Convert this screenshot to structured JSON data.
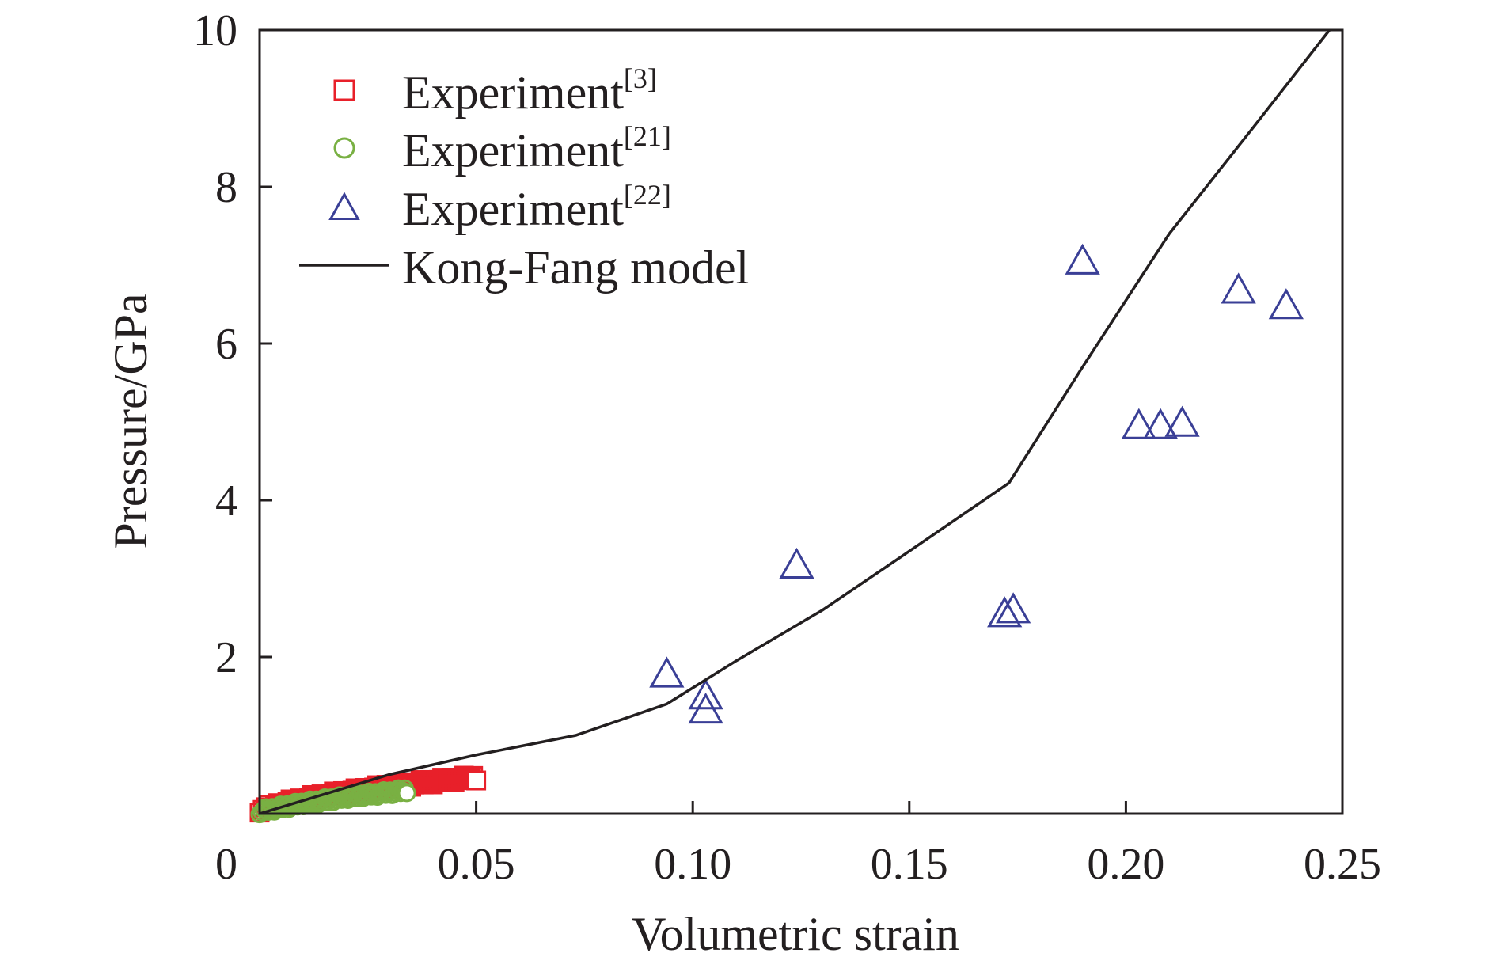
{
  "chart_data": {
    "type": "scatter",
    "xlabel": "Volumetric strain",
    "ylabel": "Pressure/GPa",
    "xlim": [
      0,
      0.25
    ],
    "ylim": [
      0,
      10
    ],
    "x_ticks": [
      {
        "value": 0,
        "label": "0"
      },
      {
        "value": 0.05,
        "label": "0.05"
      },
      {
        "value": 0.1,
        "label": "0.10"
      },
      {
        "value": 0.15,
        "label": "0.15"
      },
      {
        "value": 0.2,
        "label": "0.20"
      },
      {
        "value": 0.25,
        "label": "0.25"
      }
    ],
    "y_ticks": [
      {
        "value": 2,
        "label": "2"
      },
      {
        "value": 4,
        "label": "4"
      },
      {
        "value": 6,
        "label": "6"
      },
      {
        "value": 8,
        "label": "8"
      },
      {
        "value": 10,
        "label": "10"
      }
    ],
    "grid": false,
    "legend_position": "top-left",
    "series": [
      {
        "name": "Experiment",
        "ref": "[3]",
        "marker": "square",
        "color": "#e8202a",
        "style": "dense-open-markers",
        "x": [
          0.0,
          0.005,
          0.01,
          0.015,
          0.02,
          0.025,
          0.03,
          0.035,
          0.04,
          0.045,
          0.05
        ],
        "y": [
          0.05,
          0.12,
          0.18,
          0.23,
          0.27,
          0.31,
          0.35,
          0.38,
          0.41,
          0.44,
          0.46
        ]
      },
      {
        "name": "Experiment",
        "ref": "[21]",
        "marker": "circle",
        "color": "#79b043",
        "style": "dense-open-markers",
        "x": [
          0.0,
          0.005,
          0.01,
          0.015,
          0.02,
          0.025,
          0.03,
          0.034
        ],
        "y": [
          0.03,
          0.08,
          0.13,
          0.17,
          0.21,
          0.24,
          0.27,
          0.3
        ]
      },
      {
        "name": "Experiment",
        "ref": "[22]",
        "marker": "triangle",
        "color": "#3a3f96",
        "style": "open-markers",
        "x": [
          0.094,
          0.103,
          0.103,
          0.124,
          0.172,
          0.174,
          0.19,
          0.203,
          0.208,
          0.213,
          0.226,
          0.237
        ],
        "y": [
          1.78,
          1.5,
          1.32,
          3.17,
          2.55,
          2.6,
          7.05,
          4.95,
          4.95,
          4.98,
          6.68,
          6.48
        ]
      },
      {
        "name": "Kong-Fang model",
        "ref": "",
        "marker": "line",
        "color": "#231f20",
        "style": "line",
        "x": [
          0.0,
          0.03,
          0.05,
          0.073,
          0.094,
          0.11,
          0.13,
          0.15,
          0.173,
          0.19,
          0.21,
          0.23,
          0.247
        ],
        "y": [
          0.0,
          0.5,
          0.75,
          1.0,
          1.4,
          1.95,
          2.6,
          3.35,
          4.22,
          5.7,
          7.4,
          8.8,
          10.0
        ]
      }
    ]
  }
}
